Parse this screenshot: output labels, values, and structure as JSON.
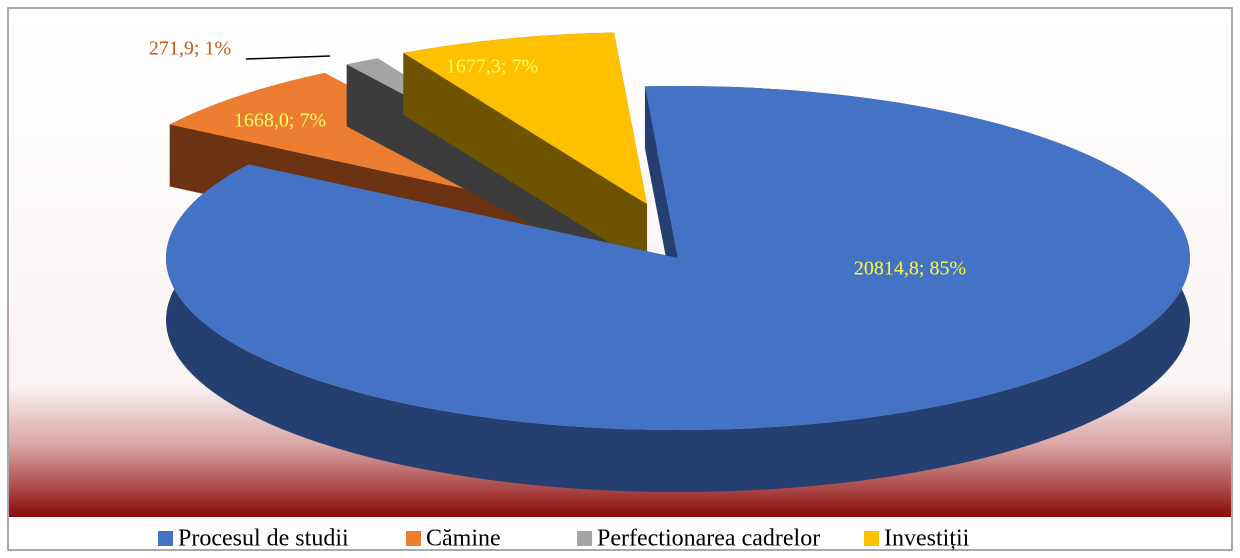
{
  "chart_data": {
    "type": "pie",
    "categories": [
      "Procesul de studii",
      "Cămine",
      "Perfectionarea cadrelor",
      "Investiții"
    ],
    "values": [
      20814.8,
      1668.0,
      271.9,
      1677.3
    ],
    "value_labels": [
      "20814,8; 85%",
      "1668,0; 7%",
      "271,9; 1%",
      "1677,3; 7%"
    ],
    "colors": [
      "#4472c4",
      "#ed7d31",
      "#a5a5a5",
      "#ffc000"
    ],
    "legend": "bottom"
  }
}
